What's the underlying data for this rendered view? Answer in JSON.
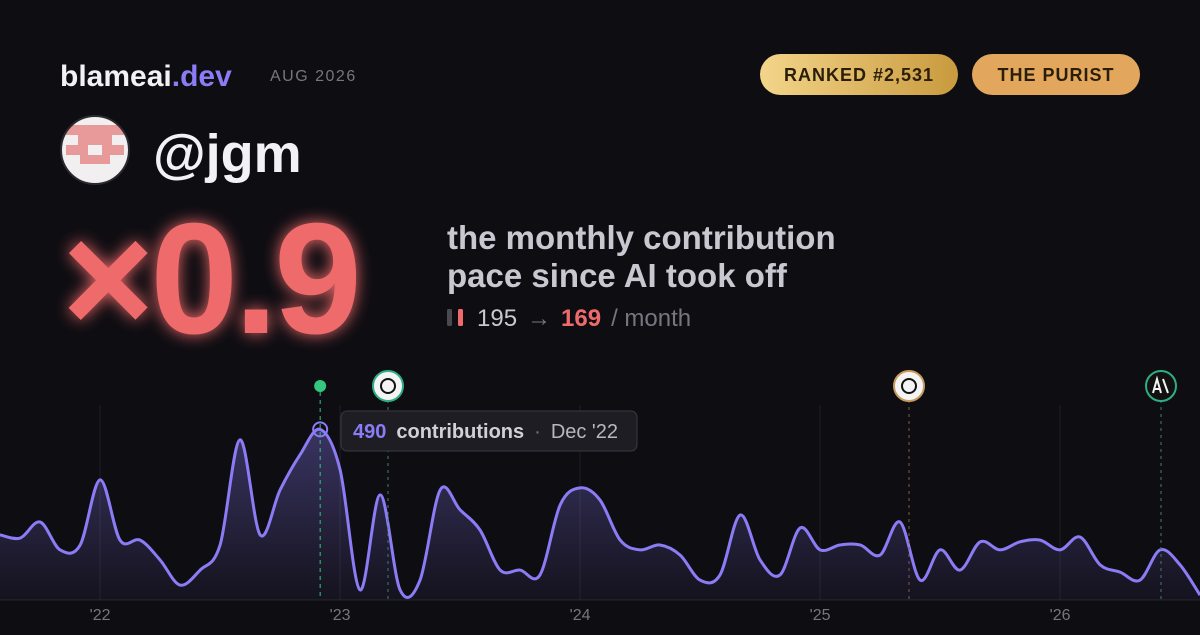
{
  "header": {
    "brand": "blameai",
    "brand_suffix": ".dev",
    "period": "AUG 2026",
    "badges": [
      "RANKED #2,531",
      "THE PURIST"
    ],
    "handle": "@jgm"
  },
  "stat": {
    "multiplier": "×0.9",
    "description_lines": [
      "the monthly contribution",
      "pace since AI took off"
    ],
    "before": "195",
    "arrow": "→",
    "after": "169",
    "unit": "/ month"
  },
  "tooltip": {
    "value": "490",
    "label": "contributions",
    "separator": "·",
    "date": "Dec '22"
  },
  "chart_data": {
    "type": "line",
    "x": [
      2021.583,
      2021.667,
      2021.75,
      2021.833,
      2021.917,
      2022,
      2022.083,
      2022.167,
      2022.25,
      2022.333,
      2022.417,
      2022.5,
      2022.583,
      2022.667,
      2022.75,
      2022.833,
      2022.917,
      2023,
      2023.083,
      2023.167,
      2023.25,
      2023.333,
      2023.417,
      2023.5,
      2023.583,
      2023.667,
      2023.75,
      2023.833,
      2023.917,
      2024,
      2024.083,
      2024.167,
      2024.25,
      2024.333,
      2024.417,
      2024.5,
      2024.583,
      2024.667,
      2024.75,
      2024.833,
      2024.917,
      2025,
      2025.083,
      2025.167,
      2025.25,
      2025.333,
      2025.417,
      2025.5,
      2025.583,
      2025.667,
      2025.75,
      2025.833,
      2025.917,
      2026,
      2026.083,
      2026.167,
      2026.25,
      2026.333,
      2026.417,
      2026.5,
      2026.583
    ],
    "series": [
      {
        "color": "#8b7cf6",
        "values": [
          187,
          178,
          224,
          144,
          158,
          345,
          172,
          172,
          115,
          43,
          86,
          158,
          460,
          187,
          316,
          417,
          490,
          374,
          29,
          302,
          29,
          57,
          316,
          259,
          201,
          86,
          86,
          72,
          273,
          322,
          287,
          172,
          144,
          158,
          129,
          57,
          72,
          244,
          115,
          72,
          207,
          144,
          158,
          158,
          129,
          224,
          57,
          144,
          86,
          167,
          144,
          167,
          172,
          144,
          181,
          101,
          80,
          57,
          144,
          101,
          14
        ]
      }
    ],
    "xlim": [
      2021.583,
      2026.583
    ],
    "ylim": [
      0,
      560
    ],
    "xticks": [
      {
        "value": 2022,
        "label": "'22"
      },
      {
        "value": 2023,
        "label": "'23"
      },
      {
        "value": 2024,
        "label": "'24"
      },
      {
        "value": 2025,
        "label": "'25"
      },
      {
        "value": 2026,
        "label": "'26"
      }
    ],
    "grid": true
  }
}
